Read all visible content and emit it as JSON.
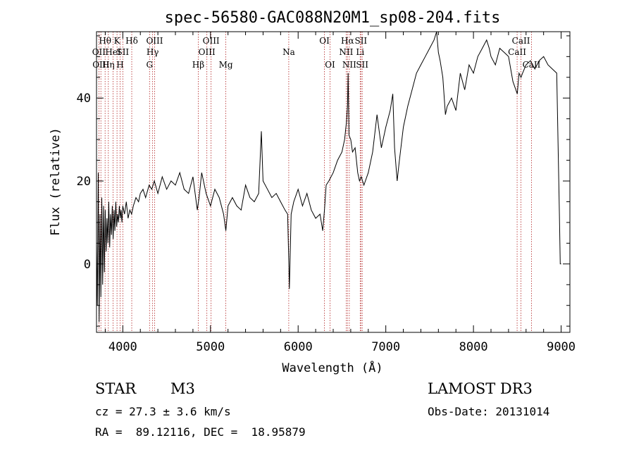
{
  "chart_data": {
    "type": "line",
    "title": "spec-56580-GAC088N20M1_sp08-204.fits",
    "xlabel": "Wavelength (Å)",
    "ylabel": "Flux (relative)",
    "xlim": [
      3700,
      9100
    ],
    "ylim": [
      -16.5,
      56
    ],
    "x_ticks": [
      4000,
      5000,
      6000,
      7000,
      8000,
      9000
    ],
    "y_ticks": [
      0,
      20,
      40
    ],
    "grid": false,
    "series": [
      {
        "name": "flux",
        "x": [
          3700,
          3710,
          3720,
          3730,
          3740,
          3750,
          3760,
          3770,
          3780,
          3790,
          3800,
          3810,
          3820,
          3830,
          3840,
          3850,
          3860,
          3870,
          3880,
          3890,
          3900,
          3910,
          3920,
          3930,
          3940,
          3950,
          3960,
          3970,
          3980,
          3990,
          4000,
          4020,
          4040,
          4060,
          4080,
          4100,
          4120,
          4150,
          4180,
          4200,
          4230,
          4260,
          4300,
          4330,
          4360,
          4400,
          4450,
          4500,
          4550,
          4600,
          4650,
          4700,
          4750,
          4800,
          4850,
          4870,
          4900,
          4950,
          5000,
          5050,
          5100,
          5150,
          5175,
          5200,
          5250,
          5300,
          5350,
          5400,
          5450,
          5500,
          5550,
          5580,
          5600,
          5650,
          5700,
          5750,
          5800,
          5850,
          5880,
          5893,
          5900,
          5920,
          5950,
          6000,
          6050,
          6100,
          6150,
          6200,
          6250,
          6280,
          6300,
          6320,
          6350,
          6400,
          6450,
          6500,
          6530,
          6550,
          6563,
          6570,
          6580,
          6600,
          6620,
          6650,
          6680,
          6700,
          6720,
          6750,
          6800,
          6850,
          6900,
          6950,
          7000,
          7050,
          7080,
          7100,
          7130,
          7150,
          7200,
          7250,
          7300,
          7350,
          7400,
          7450,
          7500,
          7550,
          7580,
          7600,
          7620,
          7650,
          7680,
          7700,
          7750,
          7800,
          7850,
          7900,
          7950,
          8000,
          8050,
          8100,
          8150,
          8180,
          8200,
          8250,
          8300,
          8350,
          8400,
          8450,
          8500,
          8520,
          8542,
          8560,
          8600,
          8650,
          8700,
          8750,
          8800,
          8850,
          8900,
          8950,
          8980,
          8990,
          9000
        ],
        "values": [
          5,
          -10,
          22,
          -14,
          12,
          -8,
          16,
          -5,
          14,
          -2,
          13,
          3,
          11,
          5,
          15,
          4,
          12,
          7,
          14,
          6,
          13,
          8,
          15,
          9,
          12,
          10,
          14,
          11,
          13,
          10,
          14,
          12,
          15,
          11,
          13,
          12,
          14,
          16,
          15,
          17,
          18,
          16,
          19,
          18,
          20,
          17,
          21,
          18,
          20,
          19,
          22,
          18,
          17,
          21,
          13,
          16,
          22,
          17,
          14,
          18,
          16,
          12,
          8,
          14,
          16,
          14,
          13,
          19,
          16,
          15,
          17,
          32,
          20,
          18,
          16,
          17,
          15,
          13,
          12,
          1,
          -6,
          12,
          15,
          18,
          14,
          17,
          13,
          11,
          12,
          8,
          13,
          19,
          20,
          22,
          25,
          27,
          30,
          34,
          38,
          46,
          31,
          30,
          27,
          28,
          22,
          20,
          21,
          19,
          22,
          27,
          36,
          28,
          33,
          37,
          41,
          28,
          20,
          24,
          33,
          38,
          42,
          46,
          48,
          50,
          52,
          54,
          56,
          51,
          49,
          45,
          36,
          38,
          40,
          37,
          46,
          42,
          48,
          46,
          50,
          52,
          54,
          52,
          50,
          48,
          52,
          51,
          50,
          44,
          41,
          46,
          45,
          46,
          48,
          49,
          47,
          49,
          50,
          48,
          47,
          46,
          12,
          0,
          0
        ]
      }
    ],
    "spectral_lines": [
      {
        "name": "Hθ",
        "x": 3798,
        "row": 1
      },
      {
        "name": "OII",
        "x": 3727,
        "row": 2
      },
      {
        "name": "OIII",
        "x": 3750,
        "row": 3
      },
      {
        "name": "Hη",
        "x": 3835,
        "row": 3
      },
      {
        "name": "HeI",
        "x": 3889,
        "row": 2
      },
      {
        "name": "K",
        "x": 3934,
        "row": 1
      },
      {
        "name": "SII",
        "x": 4000,
        "row": 2
      },
      {
        "name": "H",
        "x": 3969,
        "row": 3
      },
      {
        "name": "Hδ",
        "x": 4102,
        "row": 1
      },
      {
        "name": "OIII",
        "x": 4363,
        "row": 1
      },
      {
        "name": "Hγ",
        "x": 4340,
        "row": 2
      },
      {
        "name": "G",
        "x": 4305,
        "row": 3
      },
      {
        "name": "OIII",
        "x": 5007,
        "row": 1
      },
      {
        "name": "OIII",
        "x": 4959,
        "row": 2
      },
      {
        "name": "Hβ",
        "x": 4861,
        "row": 3
      },
      {
        "name": "Mg",
        "x": 5175,
        "row": 3
      },
      {
        "name": "Na",
        "x": 5893,
        "row": 2
      },
      {
        "name": "OI",
        "x": 6300,
        "row": 1
      },
      {
        "name": "OI",
        "x": 6364,
        "row": 3
      },
      {
        "name": "Hα",
        "x": 6563,
        "row": 1
      },
      {
        "name": "SII",
        "x": 6716,
        "row": 1
      },
      {
        "name": "NII",
        "x": 6548,
        "row": 2
      },
      {
        "name": "Li",
        "x": 6708,
        "row": 2
      },
      {
        "name": "NII",
        "x": 6584,
        "row": 3
      },
      {
        "name": "SII",
        "x": 6731,
        "row": 3
      },
      {
        "name": "CaII",
        "x": 8542,
        "row": 1
      },
      {
        "name": "CaII",
        "x": 8498,
        "row": 2
      },
      {
        "name": "CaII",
        "x": 8662,
        "row": 3
      }
    ],
    "line_markers_x": [
      3727,
      3750,
      3798,
      3835,
      3889,
      3934,
      3969,
      4000,
      4102,
      4305,
      4340,
      4363,
      4861,
      4959,
      5007,
      5175,
      5893,
      6300,
      6364,
      6548,
      6563,
      6584,
      6708,
      6716,
      6731,
      8498,
      8542,
      8662
    ]
  },
  "info": {
    "object_class": "STAR",
    "subclass": "M3",
    "survey": "LAMOST DR3",
    "cz": "cz = 27.3 ± 3.6 km/s",
    "obs_date": "Obs-Date: 20131014",
    "coords": "RA =  89.12116, DEC =  18.95879"
  },
  "colors": {
    "line": "#000000",
    "marker": "#b22222",
    "background": "#ffffff"
  }
}
